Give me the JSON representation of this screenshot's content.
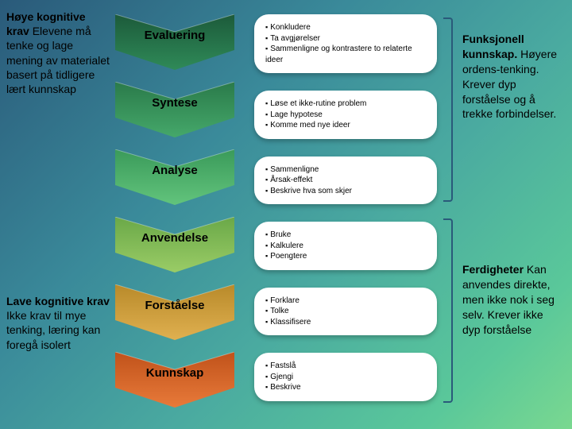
{
  "left": {
    "top": {
      "heading": "Høye kognitive krav",
      "body": "Elevene må tenke og lage mening av materialet basert på tidligere lært kunnskap"
    },
    "bottom": {
      "heading": "Lave kognitive krav",
      "body": "Ikke krav til mye tenking, læring kan foregå isolert"
    }
  },
  "right": {
    "top": {
      "heading": "Funksjonell kunnskap.",
      "body": "Høyere ordens-tenking. Krever dyp forståelse og å trekke forbindelser."
    },
    "bottom": {
      "heading": "Ferdigheter",
      "body": "Kan anvendes direkte, men ikke nok i seg selv. Krever ikke dyp forståelse"
    }
  },
  "levels": [
    {
      "label": "Evaluering",
      "color1": "#1c5a3a",
      "color2": "#2f8a58",
      "bullets": [
        "Konkludere",
        "Ta avgjørelser",
        "Sammenligne og kontrastere to relaterte ideer"
      ]
    },
    {
      "label": "Syntese",
      "color1": "#2a7a4a",
      "color2": "#45a86a",
      "bullets": [
        "Løse et ikke-rutine problem",
        "Lage hypotese",
        "Komme med nye ideer"
      ]
    },
    {
      "label": "Analyse",
      "color1": "#3a9a5a",
      "color2": "#62c47c",
      "bullets": [
        "Sammenligne",
        "Årsak-effekt",
        "Beskrive hva som skjer"
      ]
    },
    {
      "label": "Anvendelse",
      "color1": "#6aa848",
      "color2": "#9acc66",
      "bullets": [
        "Bruke",
        "Kalkulere",
        "Poengtere"
      ]
    },
    {
      "label": "Forståelse",
      "color1": "#b88a2a",
      "color2": "#e0b050",
      "bullets": [
        "Forklare",
        "Tolke",
        "Klassifisere"
      ]
    },
    {
      "label": "Kunnskap",
      "color1": "#c0521a",
      "color2": "#e87a3a",
      "bullets": [
        "Fastslå",
        "Gjengi",
        "Beskrive"
      ]
    }
  ]
}
